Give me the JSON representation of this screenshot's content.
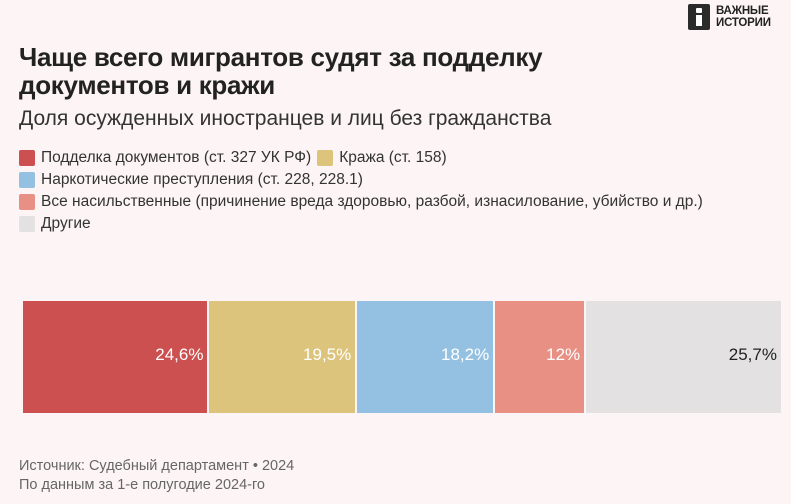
{
  "logo": {
    "line1": "ВАЖНЫЕ",
    "line2": "ИСТОРИИ"
  },
  "title": "Чаще всего мигрантов судят за подделку документов и кражи",
  "subtitle": "Доля осужденных иностранцев и лиц без гражданства",
  "colors": {
    "forgery": "#cc5050",
    "theft": "#dcc47c",
    "drugs": "#94c1e1",
    "violent": "#e99085",
    "other": "#e3e1e2",
    "background": "#fdf5f5"
  },
  "chart_data": {
    "type": "bar",
    "stacked": true,
    "orientation": "horizontal",
    "categories": [
      "Подделка документов (ст. 327 УК РФ)",
      "Кража (ст. 158)",
      "Наркотические преступления (ст. 228, 228.1)",
      "Все насильственные (причинение вреда здоровью, разбой, изнасилование, убийство и др.)",
      "Другие"
    ],
    "values": [
      24.6,
      19.5,
      18.2,
      12,
      25.7
    ],
    "value_labels": [
      "24,6%",
      "19,5%",
      "18,2%",
      "12%",
      "25,7%"
    ],
    "unit": "%",
    "title": "Чаще всего мигрантов судят за подделку документов и кражи",
    "subtitle": "Доля осужденных иностранцев и лиц без гражданства",
    "legend_position": "top-left"
  },
  "legend": [
    {
      "key": "forgery",
      "label": "Подделка документов (ст. 327 УК РФ)"
    },
    {
      "key": "theft",
      "label": "Кража (ст. 158)"
    },
    {
      "key": "drugs",
      "label": "Наркотические преступления (ст. 228, 228.1)"
    },
    {
      "key": "violent",
      "label": "Все насильственные (причинение вреда здоровью, разбой, изнасилование, убийство и др.)"
    },
    {
      "key": "other",
      "label": "Другие"
    }
  ],
  "footer": {
    "source": "Источник: Судебный департамент • 2024",
    "note": "По данным за 1-е полугодие 2024-го"
  }
}
